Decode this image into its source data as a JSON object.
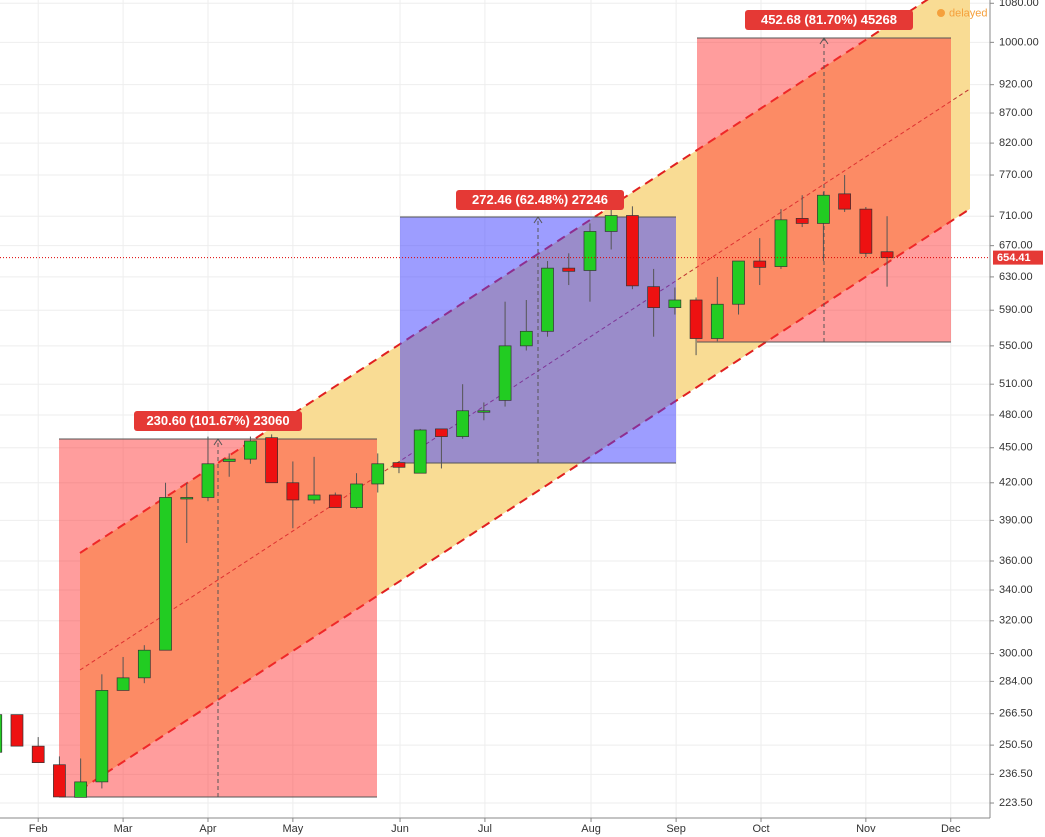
{
  "chart_data": {
    "type": "candlestick",
    "log_scale": true,
    "grid": true,
    "up_color": "#22cc22",
    "down_color": "#ee1111",
    "x": [
      0,
      1,
      2,
      3,
      4,
      5,
      6,
      7,
      8,
      9,
      10,
      11,
      12,
      13,
      14,
      15,
      16,
      17,
      18,
      19,
      20,
      21,
      22,
      23,
      24,
      25,
      26,
      27,
      28,
      29,
      30,
      31,
      32,
      33,
      34,
      35,
      36,
      37,
      38,
      39,
      40,
      41,
      42
    ],
    "open": [
      247,
      266,
      250,
      241,
      226,
      233,
      279,
      286,
      302,
      407,
      408,
      438,
      440,
      459,
      420,
      406,
      410,
      400,
      419,
      437,
      428,
      467,
      460,
      483,
      494,
      550,
      566,
      641,
      638,
      689,
      711,
      618,
      593,
      602,
      558,
      597,
      650,
      643,
      707,
      700,
      742,
      720,
      662
    ],
    "high": [
      266,
      266,
      254.5,
      245,
      244,
      288,
      298,
      305,
      420,
      420,
      460,
      445,
      460,
      462,
      438,
      442,
      412,
      428,
      445,
      438,
      467,
      466,
      510,
      492,
      600,
      602,
      650,
      660,
      700,
      722,
      724,
      640,
      617,
      605,
      630,
      650,
      680,
      720,
      740,
      745,
      770,
      723,
      710
    ],
    "low": [
      247,
      250,
      242,
      226,
      226,
      230,
      279,
      283,
      302,
      373,
      405,
      425,
      436,
      420,
      384,
      403,
      400,
      399,
      412,
      428,
      428,
      432,
      458,
      475,
      488,
      545,
      560,
      620,
      600,
      665,
      615,
      560,
      585,
      540,
      555,
      585,
      620,
      640,
      695,
      650,
      716,
      655,
      618
    ],
    "close": [
      266,
      250,
      242,
      226.2,
      233,
      279,
      286,
      302,
      408,
      408,
      436,
      440,
      456,
      420,
      406,
      410,
      400,
      419,
      436,
      433,
      466,
      460,
      484,
      484,
      550,
      566,
      641,
      637,
      689,
      711,
      619,
      593,
      602,
      558,
      597,
      650,
      642,
      705,
      700,
      740,
      720,
      660,
      654.41
    ],
    "xlim": [
      0.2,
      46.85
    ],
    "xticks": [
      {
        "value": 2,
        "label": "Feb"
      },
      {
        "value": 6,
        "label": "Mar"
      },
      {
        "value": 10,
        "label": "Apr"
      },
      {
        "value": 14,
        "label": "May"
      },
      {
        "value": 19.05,
        "label": "Jun"
      },
      {
        "value": 23.05,
        "label": "Jul"
      },
      {
        "value": 28.05,
        "label": "Aug"
      },
      {
        "value": 32.06,
        "label": "Sep"
      },
      {
        "value": 36.06,
        "label": "Oct"
      },
      {
        "value": 41,
        "label": "Nov"
      },
      {
        "value": 45,
        "label": "Dec"
      }
    ],
    "ylim": [
      217,
      1087
    ],
    "yticks": [
      {
        "value": 223.5,
        "label": "223.50"
      },
      {
        "value": 236.5,
        "label": "236.50"
      },
      {
        "value": 250.5,
        "label": "250.50"
      },
      {
        "value": 266.5,
        "label": "266.50"
      },
      {
        "value": 284,
        "label": "284.00"
      },
      {
        "value": 300,
        "label": "300.00"
      },
      {
        "value": 320,
        "label": "320.00"
      },
      {
        "value": 340,
        "label": "340.00"
      },
      {
        "value": 360,
        "label": "360.00"
      },
      {
        "value": 390,
        "label": "390.00"
      },
      {
        "value": 420,
        "label": "420.00"
      },
      {
        "value": 450,
        "label": "450.00"
      },
      {
        "value": 480,
        "label": "480.00"
      },
      {
        "value": 510,
        "label": "510.00"
      },
      {
        "value": 550,
        "label": "550.00"
      },
      {
        "value": 590,
        "label": "590.00"
      },
      {
        "value": 630,
        "label": "630.00"
      },
      {
        "value": 670,
        "label": "670.00"
      },
      {
        "value": 710,
        "label": "710.00"
      },
      {
        "value": 770,
        "label": "770.00"
      },
      {
        "value": 820,
        "label": "820.00"
      },
      {
        "value": 870,
        "label": "870.00"
      },
      {
        "value": 920,
        "label": "920.00"
      },
      {
        "value": 1000,
        "label": "1000.00"
      },
      {
        "value": 1080,
        "label": "1080.00"
      }
    ],
    "last_price": 654.41,
    "annotations": [
      "230.60 (101.67%) 23060",
      "272.46 (62.48%) 27246",
      "452.68 (81.70%) 45268"
    ],
    "status": "delayed"
  }
}
